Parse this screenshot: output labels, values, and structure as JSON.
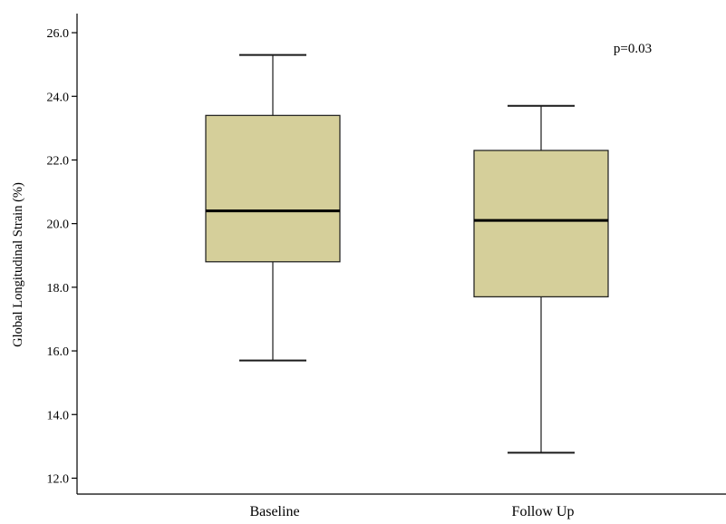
{
  "chart_data": {
    "type": "boxplot",
    "title": "",
    "xlabel": "",
    "ylabel": "Global Longitudinal Strain (%)",
    "ylim": [
      11.5,
      26.6
    ],
    "yticks": [
      "12.0",
      "14.0",
      "16.0",
      "18.0",
      "20.0",
      "22.0",
      "24.0",
      "26.0"
    ],
    "grid": false,
    "categories": [
      "Baseline",
      "Follow Up"
    ],
    "series": [
      {
        "category": "Baseline",
        "min": 15.7,
        "q1": 18.8,
        "median": 20.4,
        "q3": 23.4,
        "max": 25.3
      },
      {
        "category": "Follow Up",
        "min": 12.8,
        "q1": 17.7,
        "median": 20.1,
        "q3": 22.3,
        "max": 23.7
      }
    ],
    "annotations": [
      {
        "text": "p=0.03"
      }
    ],
    "colors": {
      "box_fill": "#d5cf9a",
      "box_stroke": "#1a1a1a",
      "median": "#000000"
    }
  }
}
